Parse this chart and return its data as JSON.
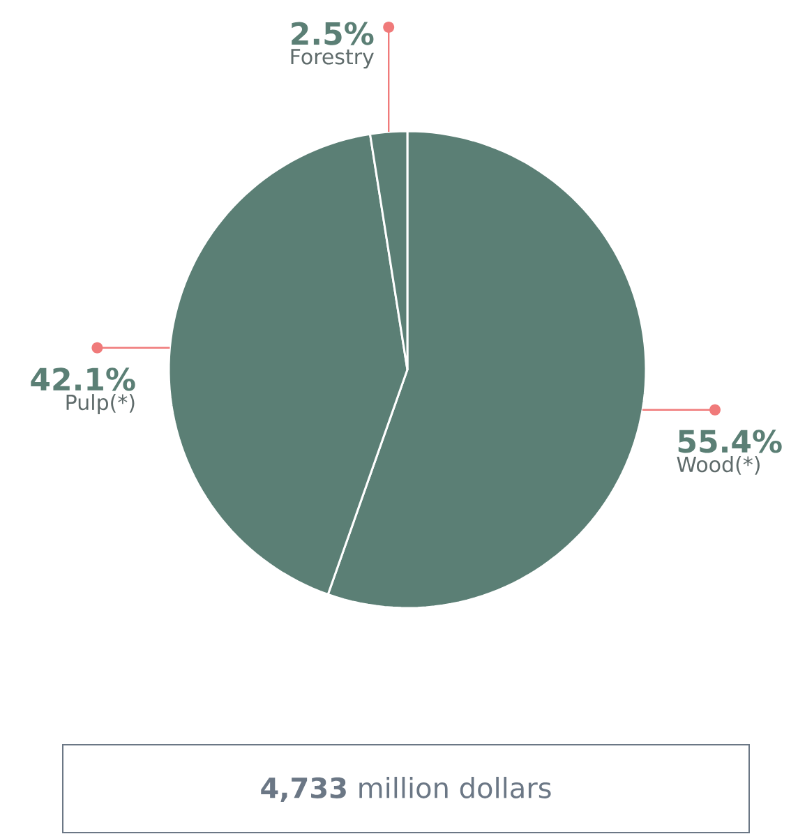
{
  "chart_data": {
    "type": "pie",
    "categories": [
      "Wood(*)",
      "Pulp(*)",
      "Forestry"
    ],
    "values": [
      55.4,
      42.1,
      2.5
    ],
    "value_labels": [
      "55.4%",
      "42.1%",
      "2.5%"
    ],
    "colors": [
      "#5b7f75",
      "#5b7f75",
      "#5b7f75"
    ],
    "annotations": [
      "**4,733** million dollars"
    ]
  }
}
